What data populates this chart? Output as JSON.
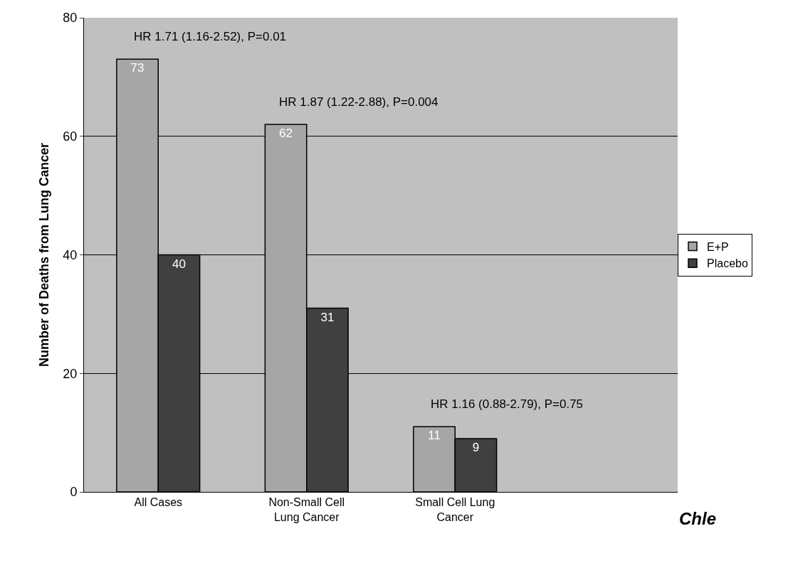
{
  "chart_data": {
    "type": "bar",
    "ylabel": "Number of Deaths from Lung Cancer",
    "categories": [
      "All Cases",
      "Non-Small Cell Lung Cancer",
      "Small Cell Lung Cancer",
      null
    ],
    "series": [
      {
        "name": "E+P",
        "color": "#a6a6a6",
        "values": [
          73,
          62,
          11,
          null
        ]
      },
      {
        "name": "Placebo",
        "color": "#404040",
        "values": [
          40,
          31,
          9,
          null
        ]
      }
    ],
    "ylim": [
      0,
      80
    ],
    "yticks": [
      0,
      20,
      40,
      60,
      80
    ],
    "grid": "y",
    "legend": "right",
    "data_labels": true,
    "annotations": [
      "HR 1.71 (1.16-2.52), P=0.01",
      "HR 1.87 (1.22-2.88), P=0.004",
      "HR 1.16 (0.88-2.79), P=0.75",
      "Chle"
    ]
  }
}
